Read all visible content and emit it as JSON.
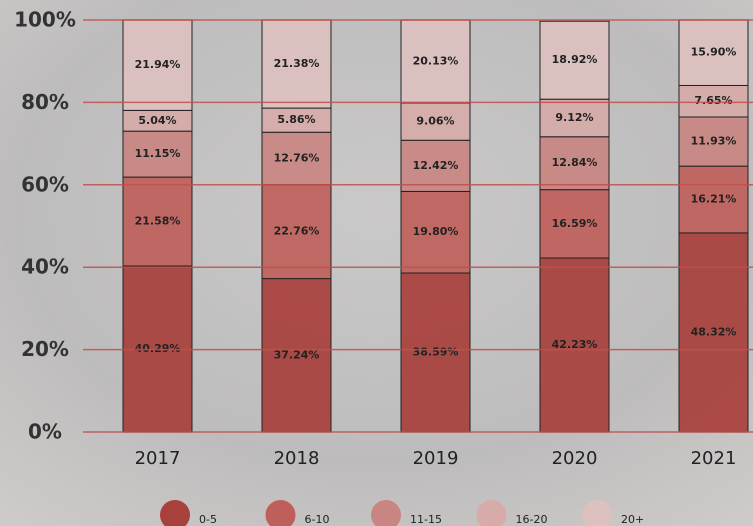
{
  "chart_data": {
    "type": "stacked_bar",
    "categories": [
      "2017",
      "2018",
      "2019",
      "2020",
      "2021"
    ],
    "series": [
      {
        "name": "0-5",
        "color": "#a8403c",
        "values": [
          40.29,
          37.24,
          38.59,
          42.23,
          48.32
        ],
        "value_labels": [
          "40.29%",
          "37.24%",
          "38.59%",
          "42.23%",
          "48.32%"
        ]
      },
      {
        "name": "6-10",
        "color": "#bf5f5b",
        "values": [
          21.58,
          22.76,
          19.8,
          16.59,
          16.21
        ],
        "value_labels": [
          "21.58%",
          "22.76%",
          "19.80%",
          "16.59%",
          "16.21%"
        ]
      },
      {
        "name": "11-15",
        "color": "#c98581",
        "values": [
          11.15,
          12.76,
          12.42,
          12.84,
          11.93
        ],
        "value_labels": [
          "11.15%",
          "12.76%",
          "12.42%",
          "12.84%",
          "11.93%"
        ]
      },
      {
        "name": "16-20",
        "color": "#d6aba8",
        "values": [
          5.04,
          5.86,
          9.06,
          9.12,
          7.65
        ],
        "value_labels": [
          "5.04%",
          "5.86%",
          "9.06%",
          "9.12%",
          "7.65%"
        ]
      },
      {
        "name": "20+",
        "color": "#dcc1bf",
        "values": [
          21.94,
          21.38,
          20.13,
          18.92,
          15.9
        ],
        "value_labels": [
          "21.94%",
          "21.38%",
          "20.13%",
          "18.92%",
          "15.90%"
        ]
      }
    ],
    "ylim": [
      0,
      100
    ],
    "yticks": [
      {
        "value": 0,
        "label": "0%"
      },
      {
        "value": 20,
        "label": "20%"
      },
      {
        "value": 40,
        "label": "40%"
      },
      {
        "value": 60,
        "label": "60%"
      },
      {
        "value": 80,
        "label": "80%"
      },
      {
        "value": 100,
        "label": "100%"
      }
    ],
    "grid": true,
    "grid_color": "#c0504d"
  }
}
